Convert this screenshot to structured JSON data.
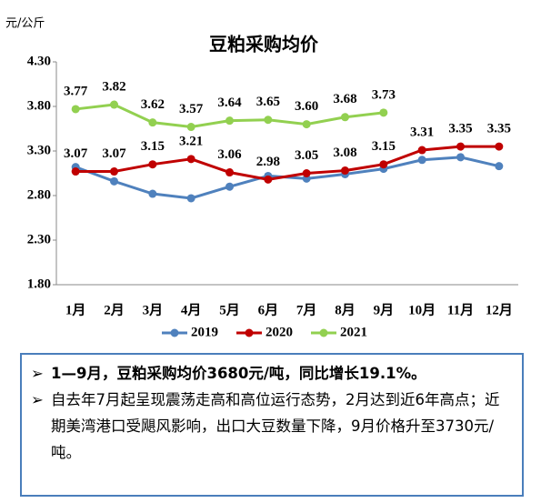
{
  "chart_data": {
    "type": "line",
    "title": "豆粕采购均价",
    "y_axis_label": "元/公斤",
    "categories": [
      "1月",
      "2月",
      "3月",
      "4月",
      "5月",
      "6月",
      "7月",
      "8月",
      "9月",
      "10月",
      "11月",
      "12月"
    ],
    "ylim": [
      1.8,
      4.3
    ],
    "yticks": [
      {
        "value": 1.8,
        "label": "1.80"
      },
      {
        "value": 2.3,
        "label": "2.30"
      },
      {
        "value": 2.8,
        "label": "2.80"
      },
      {
        "value": 3.3,
        "label": "3.30"
      },
      {
        "value": 3.8,
        "label": "3.80"
      },
      {
        "value": 4.3,
        "label": "4.30"
      }
    ],
    "grid": false,
    "legend": "bottom",
    "series": [
      {
        "name": "2019",
        "color": "#4f81bd",
        "values": [
          3.12,
          2.96,
          2.82,
          2.77,
          2.9,
          3.02,
          2.99,
          3.04,
          3.1,
          3.2,
          3.23,
          3.13
        ]
      },
      {
        "name": "2020",
        "color": "#c00000",
        "values": [
          3.07,
          3.07,
          3.15,
          3.21,
          3.06,
          2.98,
          3.05,
          3.08,
          3.15,
          3.31,
          3.35,
          3.35
        ],
        "value_labels": [
          "3.07",
          "3.07",
          "3.15",
          "3.21",
          "3.06",
          "2.98",
          "3.05",
          "3.08",
          "3.15",
          "3.31",
          "3.35",
          "3.35"
        ]
      },
      {
        "name": "2021",
        "color": "#92d050",
        "values": [
          3.77,
          3.82,
          3.62,
          3.57,
          3.64,
          3.65,
          3.6,
          3.68,
          3.73,
          null,
          null,
          null
        ],
        "value_labels": [
          "3.77",
          "3.82",
          "3.62",
          "3.57",
          "3.64",
          "3.65",
          "3.60",
          "3.68",
          "3.73",
          null,
          null,
          null
        ]
      }
    ]
  },
  "notes": [
    "1—9月，豆粕采购均价3680元/吨，同比增长19.1%。",
    "自去年7月起呈现震荡走高和高位运行态势，2月达到近6年高点；近期美湾港口受飓风影响，出口大豆数量下降，9月价格升至3730元/吨。"
  ]
}
